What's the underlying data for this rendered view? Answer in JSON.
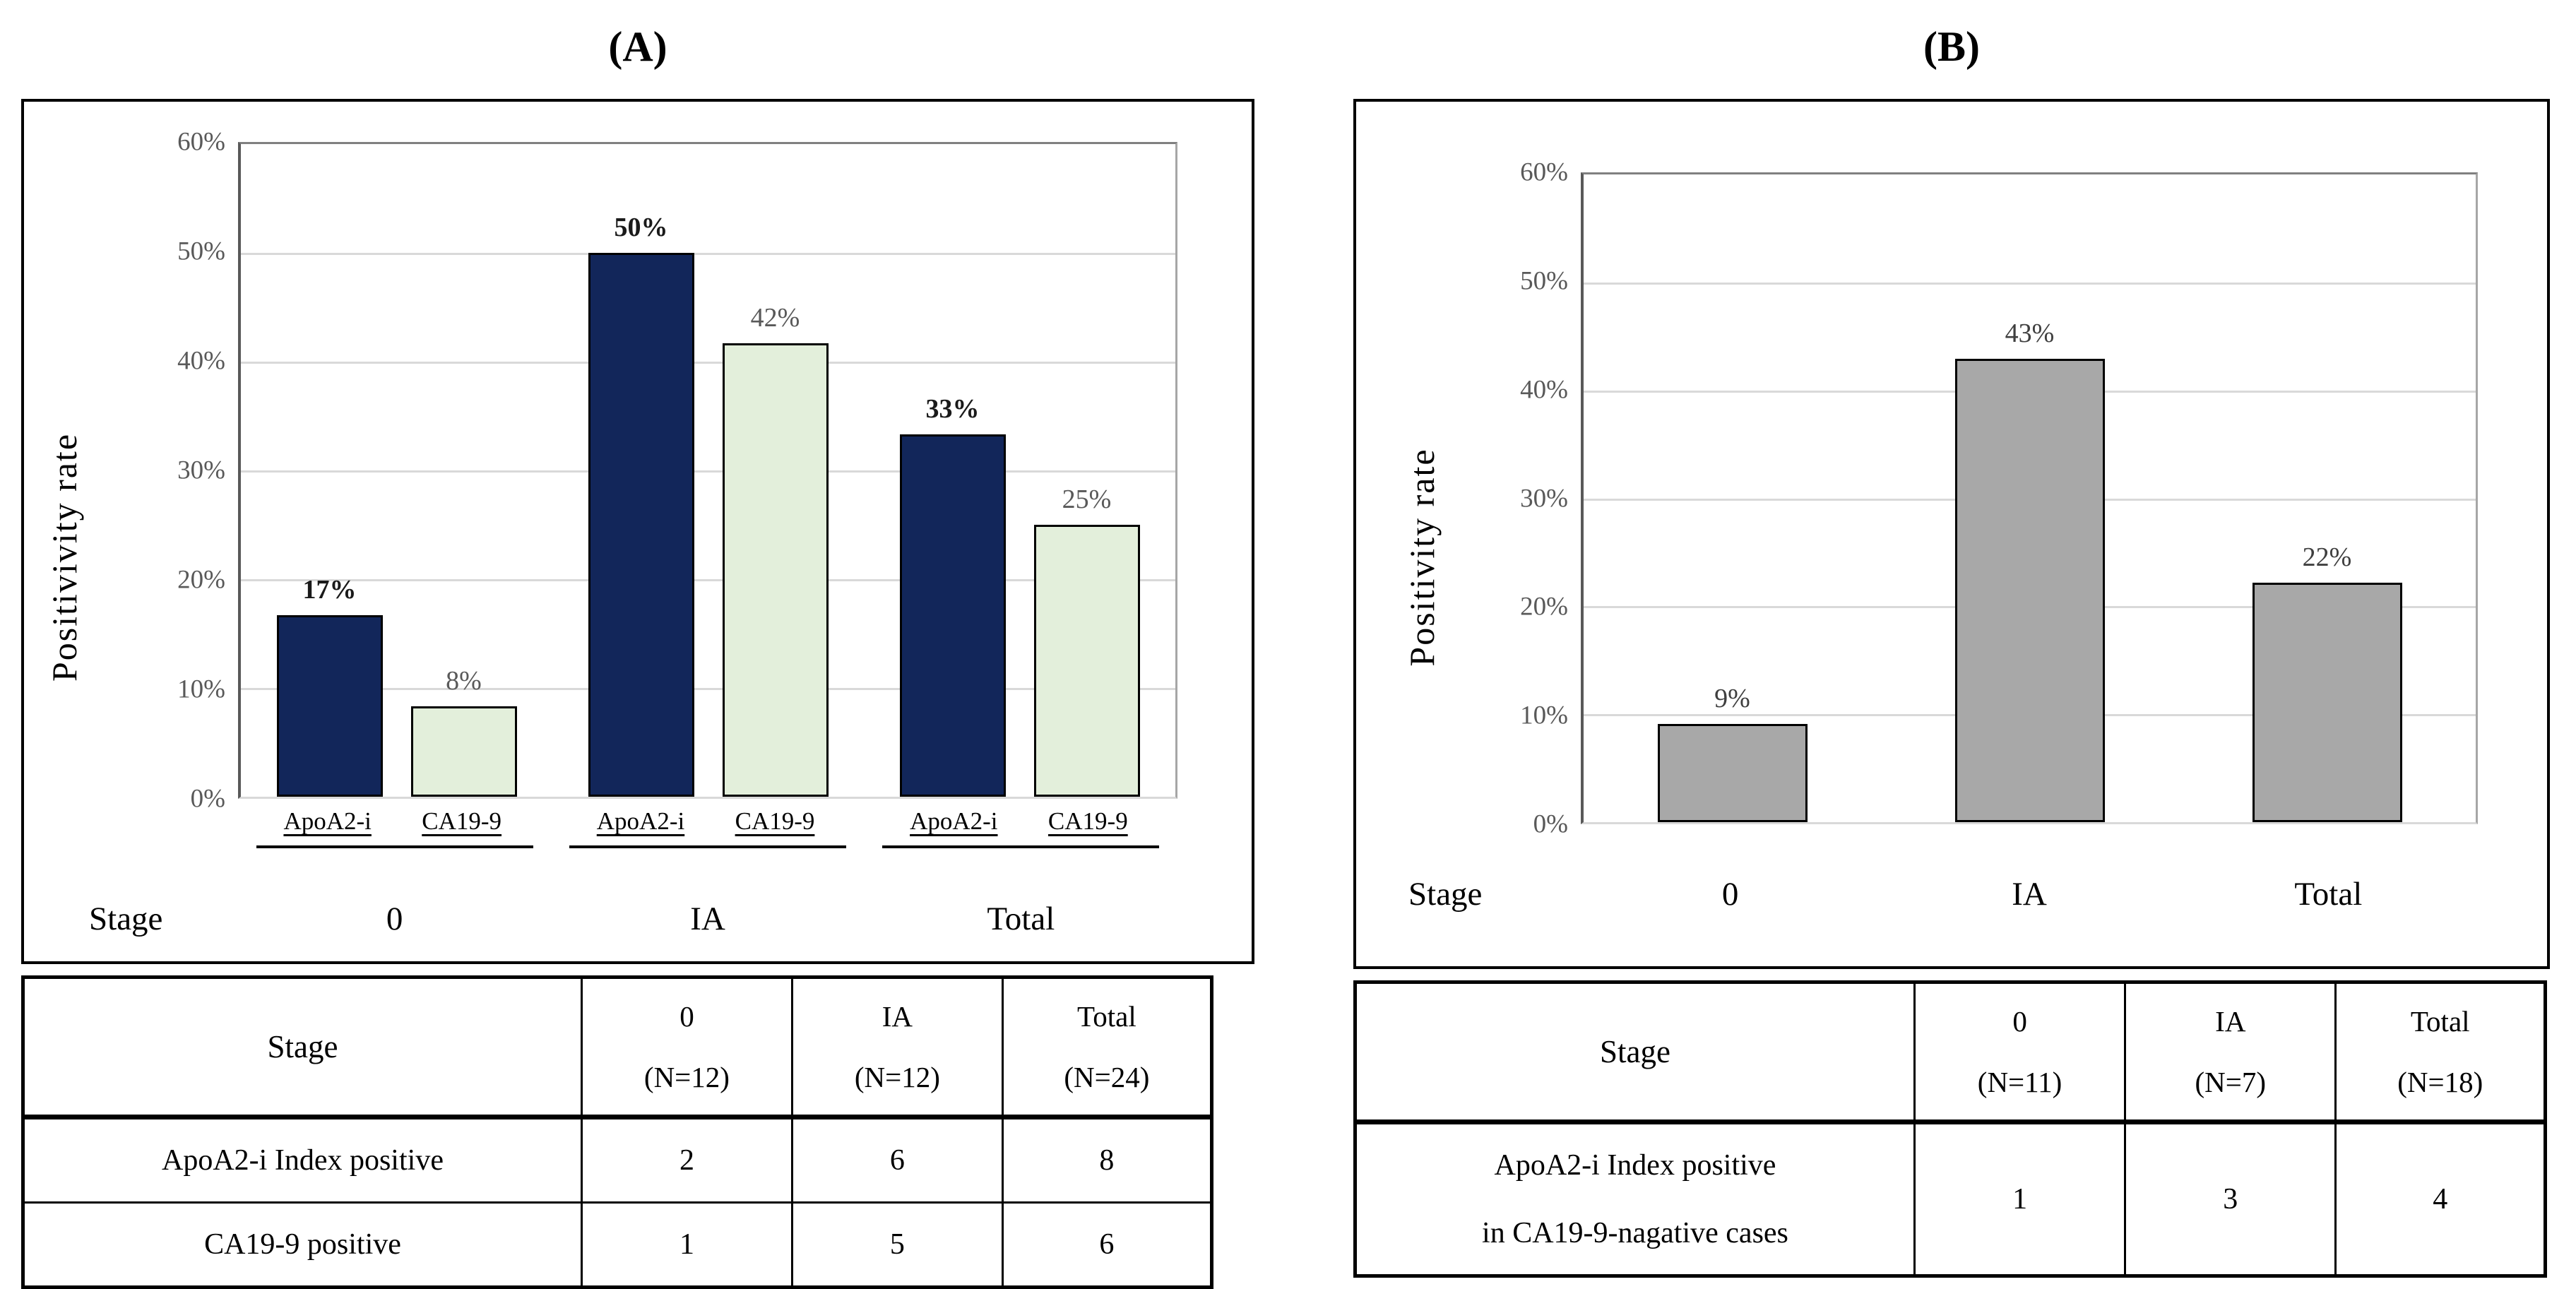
{
  "figure": {
    "background": "#ffffff"
  },
  "panels": [
    {
      "title": "(A)"
    },
    {
      "title": "(B)"
    }
  ],
  "chart_data": [
    {
      "type": "bar",
      "panel": "A",
      "title": "(A)",
      "ylabel": "Positivivity rate",
      "xlabel": "",
      "stage_label": "Stage",
      "ylim": [
        0,
        60
      ],
      "grid": true,
      "legend_position": "none",
      "ytick_labels": [
        "60%",
        "50%",
        "40%",
        "30%",
        "20%",
        "10%",
        "0%"
      ],
      "categories": [
        "0",
        "IA",
        "Total"
      ],
      "series": [
        {
          "name": "ApoA2-i",
          "values": [
            16.7,
            50,
            33.3
          ],
          "labels": [
            "17%",
            "50%",
            "33%"
          ],
          "color": "#12265a",
          "label_color": "#1a1a1a",
          "label_weight": "600"
        },
        {
          "name": "CA19-9",
          "values": [
            8.3,
            41.7,
            25
          ],
          "labels": [
            "8%",
            "42%",
            "25%"
          ],
          "color": "#e3efdb",
          "label_color": "#595959",
          "label_weight": "400"
        }
      ]
    },
    {
      "type": "bar",
      "panel": "B",
      "title": "(B)",
      "ylabel": "Positivity rate",
      "xlabel": "",
      "stage_label": "Stage",
      "ylim": [
        0,
        60
      ],
      "grid": true,
      "legend_position": "none",
      "ytick_labels": [
        "60%",
        "50%",
        "40%",
        "30%",
        "20%",
        "10%",
        "0%"
      ],
      "categories": [
        "0",
        "IA",
        "Total"
      ],
      "series": [
        {
          "name": "ApoA2-i Index positive in CA19-9-nagative cases",
          "values": [
            9.1,
            42.9,
            22.2
          ],
          "labels": [
            "9%",
            "43%",
            "22%"
          ],
          "color": "#a8a8a8",
          "label_color": "#3f3f3f",
          "label_weight": "400"
        }
      ]
    }
  ],
  "tables": [
    {
      "stage_header": "Stage",
      "columns": [
        [
          "0",
          "(N=12)"
        ],
        [
          "IA",
          "(N=12)"
        ],
        [
          "Total",
          "(N=24)"
        ]
      ],
      "rows": [
        {
          "label": [
            "ApoA2-i Index positive"
          ],
          "values": [
            "2",
            "6",
            "8"
          ]
        },
        {
          "label": [
            "CA19-9 positive"
          ],
          "values": [
            "1",
            "5",
            "6"
          ]
        }
      ]
    },
    {
      "stage_header": "Stage",
      "columns": [
        [
          "0",
          "(N=11)"
        ],
        [
          "IA",
          "(N=7)"
        ],
        [
          "Total",
          "(N=18)"
        ]
      ],
      "rows": [
        {
          "label": [
            "ApoA2-i Index positive",
            "in CA19-9-nagative cases"
          ],
          "values": [
            "1",
            "3",
            "4"
          ]
        }
      ]
    }
  ]
}
